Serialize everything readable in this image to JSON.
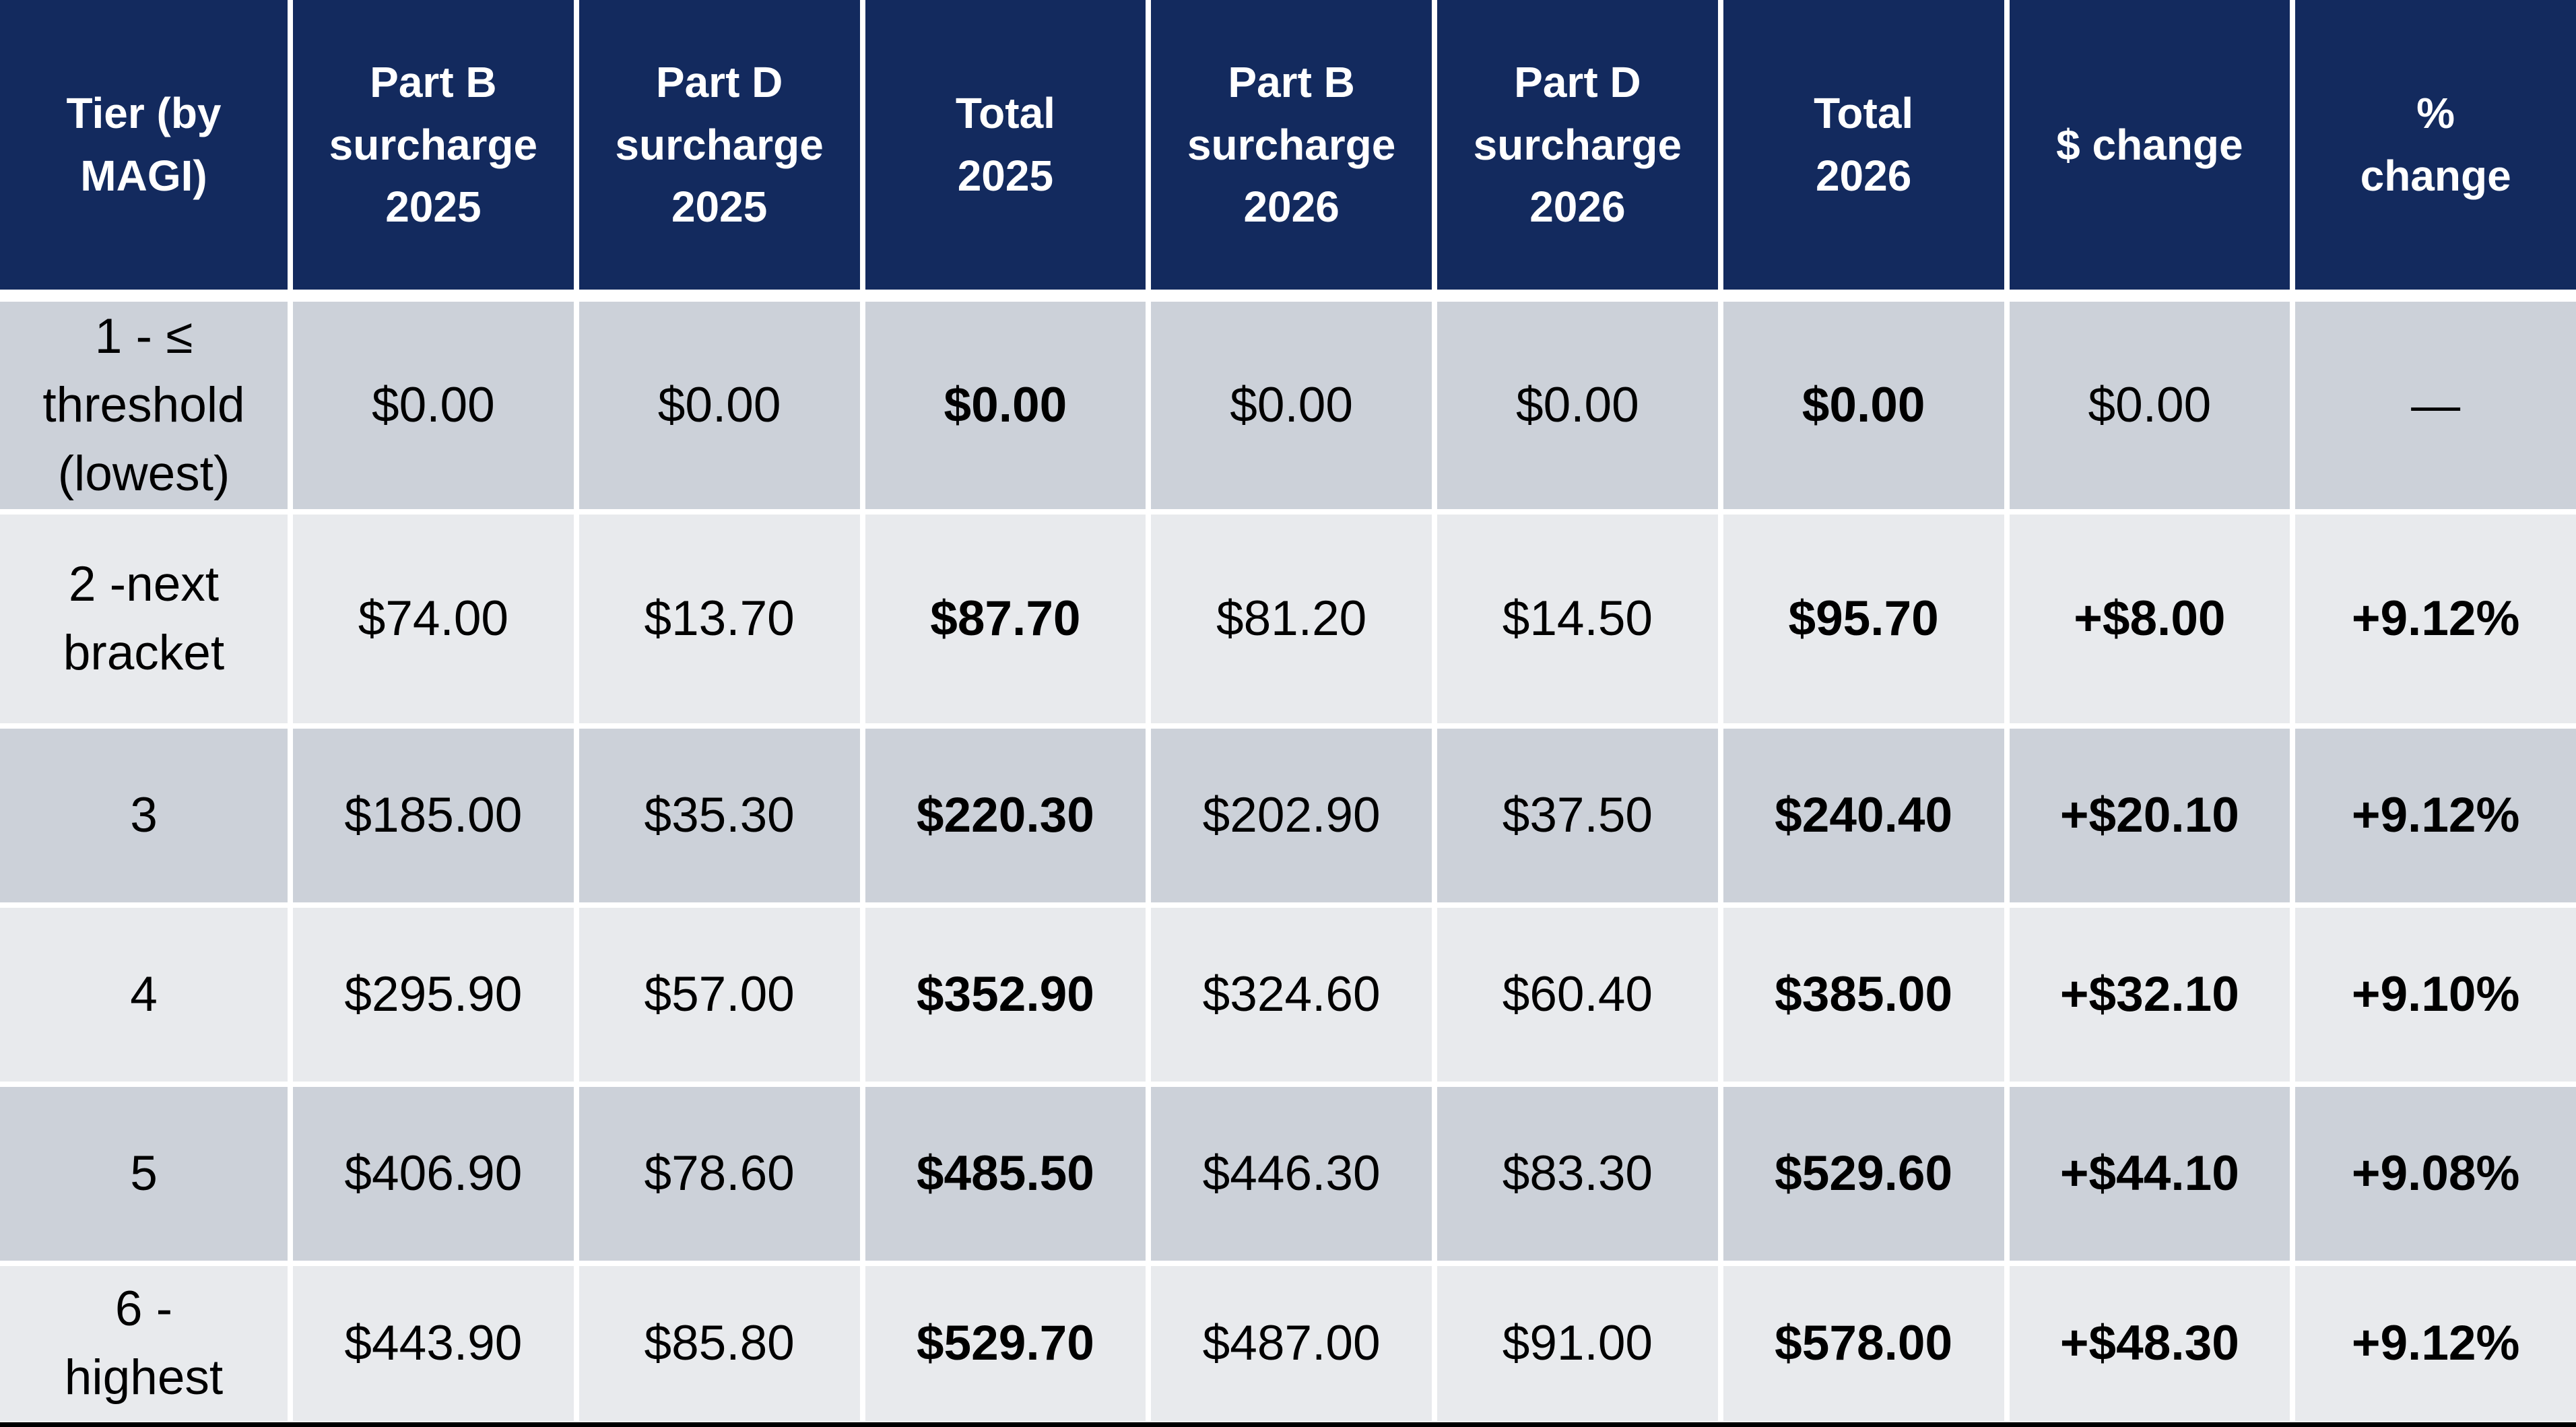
{
  "colors": {
    "header_bg": "#132A5E",
    "header_text": "#FFFFFF",
    "row_odd_bg": "#CCD1D9",
    "row_even_bg": "#E8EAED",
    "body_text": "#000000",
    "grid_line": "#FFFFFF",
    "bottom_bar": "#000000"
  },
  "table": {
    "columns": [
      "Tier (by\nMAGI)",
      "Part B\nsurcharge\n2025",
      "Part D\nsurcharge\n2025",
      "Total\n2025",
      "Part B\nsurcharge\n2026",
      "Part D\nsurcharge\n2026",
      "Total\n2026",
      "$ change",
      "%\nchange"
    ],
    "rows": [
      {
        "cells": [
          "1 - ≤\nthreshold\n(lowest)",
          "$0.00",
          "$0.00",
          "$0.00",
          "$0.00",
          "$0.00",
          "$0.00",
          "$0.00",
          "—"
        ]
      },
      {
        "cells": [
          "2 -next\nbracket",
          "$74.00",
          "$13.70",
          "$87.70",
          "$81.20",
          "$14.50",
          "$95.70",
          "+$8.00",
          "+9.12%"
        ]
      },
      {
        "cells": [
          "3",
          "$185.00",
          "$35.30",
          "$220.30",
          "$202.90",
          "$37.50",
          "$240.40",
          "+$20.10",
          "+9.12%"
        ]
      },
      {
        "cells": [
          "4",
          "$295.90",
          "$57.00",
          "$352.90",
          "$324.60",
          "$60.40",
          "$385.00",
          "+$32.10",
          "+9.10%"
        ]
      },
      {
        "cells": [
          "5",
          "$406.90",
          "$78.60",
          "$485.50",
          "$446.30",
          "$83.30",
          "$529.60",
          "+$44.10",
          "+9.08%"
        ]
      },
      {
        "cells": [
          "6 -\nhighest",
          "$443.90",
          "$85.80",
          "$529.70",
          "$487.00",
          "$91.00",
          "$578.00",
          "+$48.30",
          "+9.12%"
        ]
      }
    ]
  }
}
